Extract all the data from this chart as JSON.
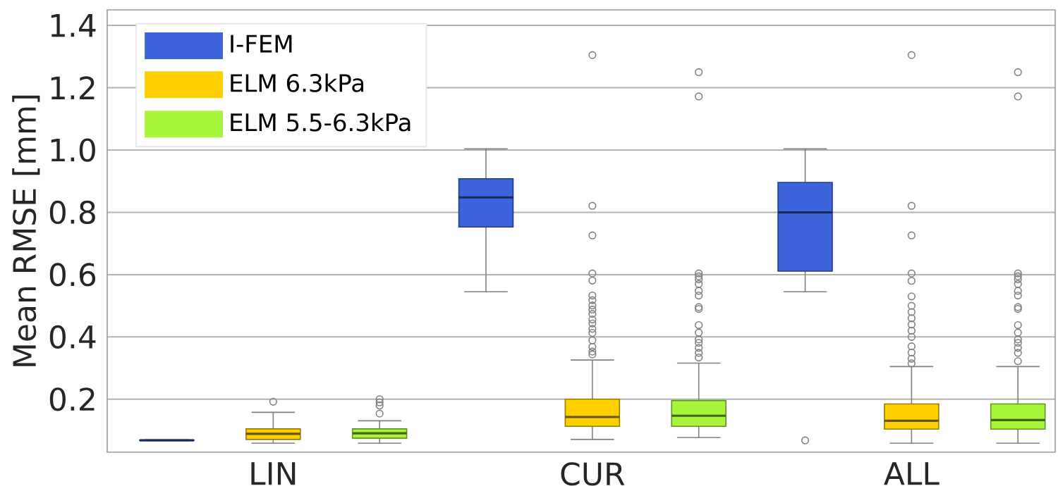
{
  "chart_data": {
    "type": "box",
    "ylabel": "Mean RMSE [mm]",
    "categories": [
      "LIN",
      "CUR",
      "ALL"
    ],
    "ylim": [
      0.03,
      1.45
    ],
    "yticks": [
      {
        "value": 0.2,
        "label": "0.2"
      },
      {
        "value": 0.4,
        "label": "0.4"
      },
      {
        "value": 0.6,
        "label": "0.6"
      },
      {
        "value": 0.8,
        "label": "0.8"
      },
      {
        "value": 1.0,
        "label": "1.0"
      },
      {
        "value": 1.2,
        "label": "1.2"
      },
      {
        "value": 1.4,
        "label": "1.4"
      }
    ],
    "grid": "y",
    "legend": "top left",
    "series": [
      {
        "name": "I-FEM",
        "color": "#3e64dc",
        "boxes": [
          {
            "low": 0.067,
            "q1": 0.068,
            "median": 0.068,
            "q3": 0.069,
            "high": 0.07
          },
          {
            "low": 0.545,
            "q1": 0.753,
            "median": 0.848,
            "q3": 0.908,
            "high": 1.004
          },
          {
            "low": 0.545,
            "q1": 0.611,
            "median": 0.8,
            "q3": 0.896,
            "high": 1.004,
            "outliers": [
              0.068
            ]
          }
        ]
      },
      {
        "name": "ELM 6.3kPa",
        "color": "#ffd000",
        "boxes": [
          {
            "low": 0.059,
            "q1": 0.071,
            "median": 0.089,
            "q3": 0.105,
            "high": 0.158,
            "outliers": [
              0.192
            ]
          },
          {
            "low": 0.071,
            "q1": 0.113,
            "median": 0.143,
            "q3": 0.2,
            "high": 0.326,
            "outliers": [
              1.305,
              0.821,
              0.726,
              0.604,
              0.581,
              0.533,
              0.518,
              0.501,
              0.488,
              0.474,
              0.456,
              0.443,
              0.426,
              0.413,
              0.389,
              0.368,
              0.353,
              0.344
            ]
          },
          {
            "low": 0.059,
            "q1": 0.104,
            "median": 0.131,
            "q3": 0.185,
            "high": 0.305,
            "outliers": [
              1.305,
              0.821,
              0.726,
              0.604,
              0.58,
              0.53,
              0.5,
              0.48,
              0.46,
              0.44,
              0.42,
              0.4,
              0.37,
              0.35,
              0.33,
              0.315
            ]
          }
        ]
      },
      {
        "name": "ELM 5.5-6.3kPa",
        "color": "#a6f53a",
        "boxes": [
          {
            "low": 0.059,
            "q1": 0.075,
            "median": 0.091,
            "q3": 0.105,
            "high": 0.131,
            "outliers": [
              0.154,
              0.18,
              0.19,
              0.2
            ]
          },
          {
            "low": 0.077,
            "q1": 0.113,
            "median": 0.147,
            "q3": 0.196,
            "high": 0.316,
            "outliers": [
              1.25,
              1.172,
              0.604,
              0.595,
              0.585,
              0.57,
              0.548,
              0.533,
              0.496,
              0.49,
              0.438,
              0.414,
              0.392,
              0.381,
              0.365,
              0.349,
              0.334
            ]
          },
          {
            "low": 0.059,
            "q1": 0.104,
            "median": 0.133,
            "q3": 0.185,
            "high": 0.305,
            "outliers": [
              1.25,
              1.172,
              0.604,
              0.595,
              0.585,
              0.57,
              0.548,
              0.533,
              0.496,
              0.49,
              0.438,
              0.414,
              0.392,
              0.381,
              0.365,
              0.349,
              0.322
            ]
          }
        ]
      }
    ]
  }
}
